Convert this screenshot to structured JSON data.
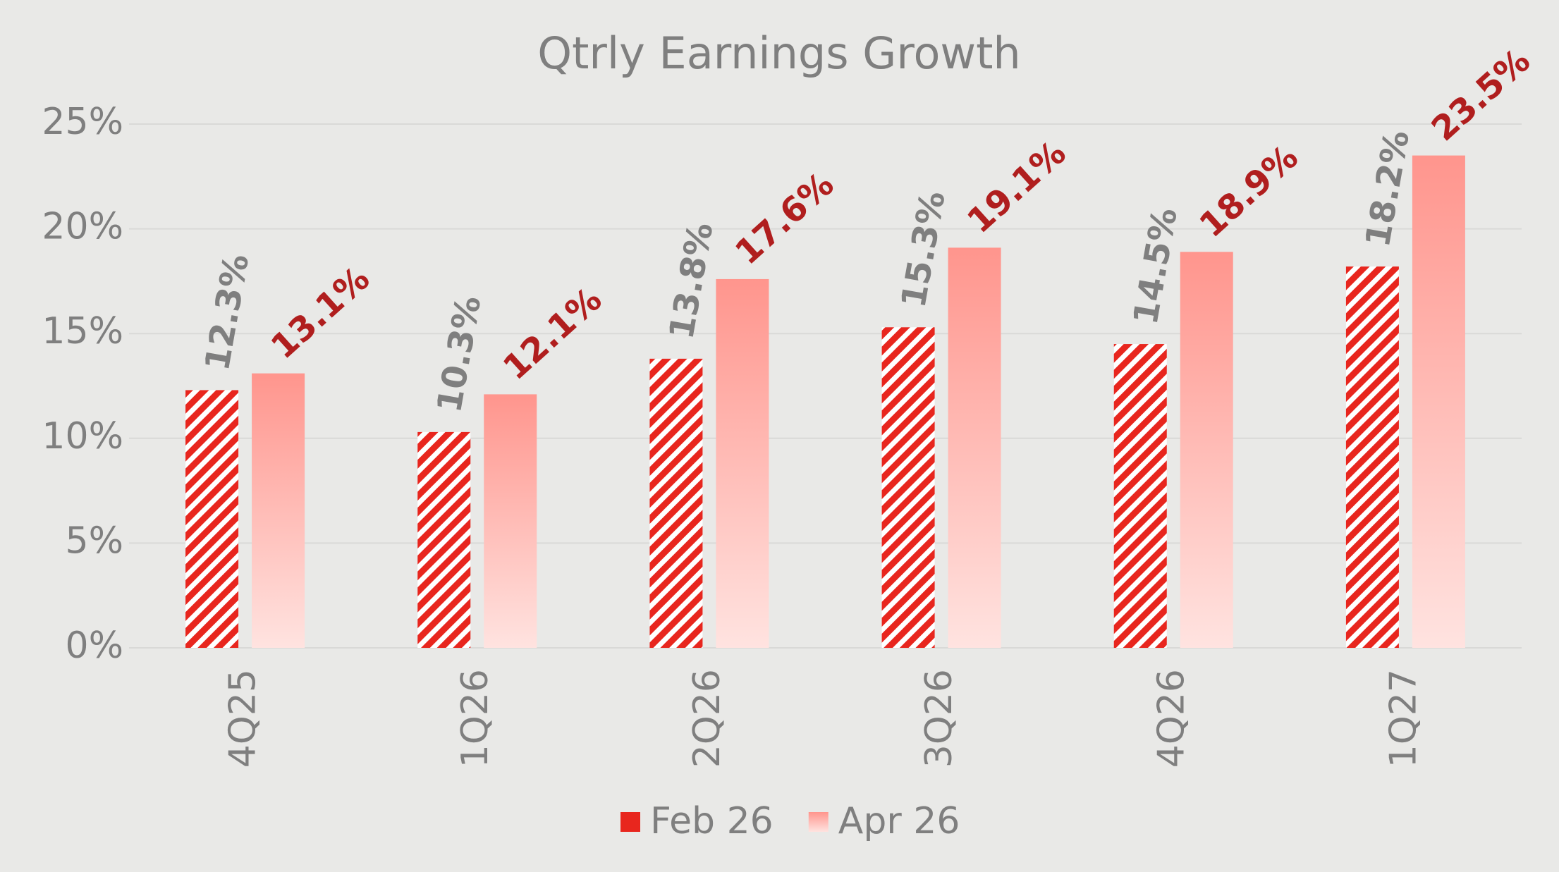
{
  "chart_data": {
    "type": "bar",
    "title": "Qtrly Earnings Growth",
    "categories": [
      "4Q25",
      "1Q26",
      "2Q26",
      "3Q26",
      "4Q26",
      "1Q27"
    ],
    "series": [
      {
        "name": "Feb 26",
        "color": "#e8261e",
        "values": [
          12.3,
          10.3,
          13.8,
          15.3,
          14.5,
          18.2
        ],
        "value_labels": [
          "12.3%",
          "10.3%",
          "13.8%",
          "15.3%",
          "14.5%",
          "18.2%"
        ]
      },
      {
        "name": "Apr 26",
        "color": "#ff958d",
        "values": [
          13.1,
          12.1,
          17.6,
          19.1,
          18.9,
          23.5
        ],
        "value_labels": [
          "13.1%",
          "12.1%",
          "17.6%",
          "19.1%",
          "18.9%",
          "23.5%"
        ]
      }
    ],
    "ylim": [
      0,
      25
    ],
    "yticks": [
      {
        "value": 0,
        "label": "0%"
      },
      {
        "value": 5,
        "label": "5%"
      },
      {
        "value": 10,
        "label": "10%"
      },
      {
        "value": 15,
        "label": "15%"
      },
      {
        "value": 20,
        "label": "20%"
      },
      {
        "value": 25,
        "label": "25%"
      }
    ],
    "grid": true
  }
}
